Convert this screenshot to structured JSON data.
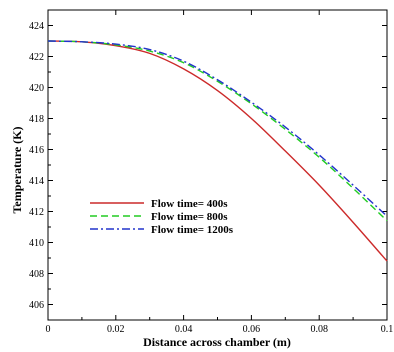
{
  "chart_data": {
    "type": "line",
    "xlabel": "Distance across chamber (m)",
    "ylabel": "Temperature (K)",
    "xlim": [
      0,
      0.1
    ],
    "ylim": [
      405,
      425
    ],
    "xticks": [
      0,
      0.02,
      0.04,
      0.06,
      0.08,
      0.1
    ],
    "xtick_labels": [
      "0",
      "0.02",
      "0.04",
      "0.06",
      "0.08",
      "0.1"
    ],
    "yticks": [
      406,
      408,
      410,
      412,
      414,
      416,
      418,
      420,
      422,
      424
    ],
    "ytick_labels": [
      "406",
      "408",
      "410",
      "412",
      "414",
      "416",
      "418",
      "420",
      "422",
      "424"
    ],
    "grid": false,
    "legend_position": "left",
    "series": [
      {
        "name": "Flow time= 400s",
        "color": "#cc2a2a",
        "dash": "solid",
        "x": [
          0,
          0.01,
          0.02,
          0.03,
          0.04,
          0.05,
          0.06,
          0.07,
          0.08,
          0.09,
          0.1
        ],
        "y": [
          423.0,
          422.95,
          422.7,
          422.2,
          421.2,
          419.8,
          418.0,
          415.9,
          413.7,
          411.3,
          408.8
        ]
      },
      {
        "name": "Flow time= 800s",
        "color": "#22cc22",
        "dash": "dashed",
        "x": [
          0,
          0.01,
          0.02,
          0.03,
          0.04,
          0.05,
          0.06,
          0.07,
          0.08,
          0.09,
          0.1
        ],
        "y": [
          423.0,
          422.95,
          422.75,
          422.35,
          421.6,
          420.4,
          418.95,
          417.3,
          415.5,
          413.5,
          411.4
        ]
      },
      {
        "name": "Flow time= 1200s",
        "color": "#2233cc",
        "dash": "dashdot",
        "x": [
          0,
          0.01,
          0.02,
          0.03,
          0.04,
          0.05,
          0.06,
          0.07,
          0.08,
          0.09,
          0.1
        ],
        "y": [
          423.0,
          422.95,
          422.8,
          422.45,
          421.7,
          420.5,
          419.05,
          417.45,
          415.65,
          413.7,
          411.7
        ]
      }
    ]
  }
}
